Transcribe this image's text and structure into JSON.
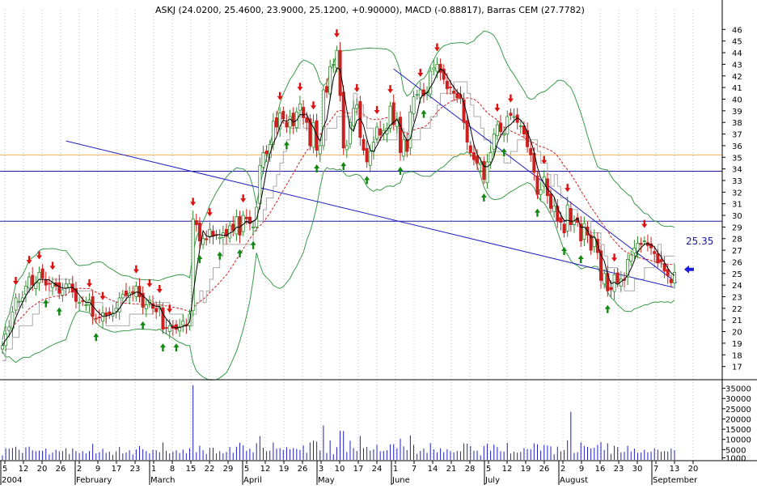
{
  "chart_data": {
    "type": "candlestick",
    "title": "ASKJ (24.0200, 25.4600, 23.9000, 25.1200, +0.90000), MACD (-0.88817), Barras CEM (27.7782)",
    "ylim": [
      16,
      47
    ],
    "yticks": [
      17,
      18,
      19,
      20,
      21,
      22,
      23,
      24,
      25,
      26,
      27,
      28,
      29,
      30,
      31,
      32,
      33,
      34,
      35,
      36,
      37,
      38,
      39,
      40,
      41,
      42,
      43,
      44,
      45,
      46
    ],
    "volume_ticks": [
      {
        "value": 1000,
        "label": "1000"
      },
      {
        "value": 5000,
        "label": "5000"
      },
      {
        "value": 10000,
        "label": "10000"
      },
      {
        "value": 15000,
        "label": "15000"
      },
      {
        "value": 20000,
        "label": "20000"
      },
      {
        "value": 25000,
        "label": "25000"
      },
      {
        "value": 30000,
        "label": "30000"
      },
      {
        "value": 35000,
        "label": "35000"
      }
    ],
    "volume_max": 38000,
    "x_day_labels": [
      "5",
      "12",
      "20",
      "26",
      "2",
      "9",
      "17",
      "23",
      "1",
      "8",
      "15",
      "22",
      "29",
      "5",
      "12",
      "19",
      "26",
      "3",
      "10",
      "17",
      "24",
      "1",
      "7",
      "14",
      "21",
      "28",
      "5",
      "12",
      "19",
      "26",
      "2",
      "9",
      "16",
      "23",
      "30",
      "7",
      "13",
      "20"
    ],
    "x_month_labels": [
      {
        "label": "2004",
        "index": 0
      },
      {
        "label": "February",
        "index": 4
      },
      {
        "label": "March",
        "index": 8
      },
      {
        "label": "April",
        "index": 13
      },
      {
        "label": "May",
        "index": 17
      },
      {
        "label": "June",
        "index": 21
      },
      {
        "label": "July",
        "index": 26
      },
      {
        "label": "August",
        "index": 30
      },
      {
        "label": "September",
        "index": 35
      }
    ],
    "horizontal_lines": [
      {
        "value": 35.2,
        "color": "#f0b060"
      },
      {
        "value": 33.8,
        "color": "#1a1aa0"
      },
      {
        "value": 29.5,
        "color": "#1a1aa0"
      }
    ],
    "trendlines": [
      {
        "from": {
          "i": 19,
          "y": 36.4
        },
        "to": {
          "i": 191,
          "y": 24.6
        },
        "color": "#2020c0"
      },
      {
        "from": {
          "i": 117,
          "y": 42.6
        },
        "to": {
          "i": 192,
          "y": 25.0
        },
        "color": "#2020c0"
      }
    ],
    "annotation": {
      "text": "25.35",
      "value": 25.35
    },
    "close": [
      18.8,
      19.8,
      20.4,
      21.7,
      22.9,
      22.6,
      22.9,
      23.9,
      24.7,
      24.0,
      24.2,
      25.1,
      24.6,
      24.0,
      24.1,
      24.2,
      23.9,
      23.3,
      23.6,
      24.1,
      24.1,
      23.4,
      22.6,
      22.5,
      22.6,
      22.3,
      22.7,
      21.3,
      21.1,
      21.2,
      21.6,
      21.4,
      21.5,
      21.6,
      22.0,
      22.9,
      23.2,
      23.1,
      23.3,
      23.3,
      23.9,
      23.0,
      22.1,
      22.3,
      22.7,
      22.0,
      21.7,
      22.2,
      20.2,
      20.3,
      20.5,
      20.3,
      20.2,
      20.4,
      20.9,
      20.5,
      21.5,
      29.7,
      29.2,
      27.8,
      28.0,
      27.9,
      28.8,
      28.2,
      28.3,
      28.1,
      28.5,
      28.2,
      29.1,
      28.7,
      29.9,
      28.3,
      30.0,
      29.7,
      29.3,
      29.0,
      30.7,
      34.3,
      35.4,
      35.3,
      36.1,
      38.1,
      37.6,
      38.8,
      38.3,
      37.6,
      38.5,
      37.7,
      38.9,
      39.6,
      38.4,
      38.0,
      36.0,
      38.0,
      35.6,
      36.0,
      40.8,
      40.6,
      42.8,
      43.0,
      44.2,
      40.3,
      35.8,
      36.0,
      38.0,
      39.2,
      39.5,
      36.7,
      35.6,
      34.6,
      35.5,
      36.3,
      37.6,
      36.9,
      37.3,
      37.5,
      39.4,
      37.8,
      38.3,
      35.4,
      36.5,
      35.5,
      38.9,
      40.2,
      40.4,
      40.8,
      40.3,
      40.6,
      42.4,
      42.7,
      43.0,
      42.3,
      41.7,
      40.9,
      41.0,
      40.5,
      40.1,
      40.1,
      38.0,
      36.3,
      35.4,
      34.8,
      34.5,
      34.5,
      33.1,
      34.6,
      35.4,
      37.0,
      37.8,
      37.2,
      37.0,
      38.5,
      38.6,
      38.5,
      38.0,
      37.7,
      37.0,
      35.9,
      35.2,
      33.7,
      31.8,
      32.2,
      33.3,
      31.7,
      30.6,
      30.8,
      29.5,
      29.4,
      28.5,
      30.9,
      29.2,
      29.5,
      29.4,
      27.8,
      29.3,
      28.3,
      27.0,
      28.1,
      26.8,
      24.4,
      25.0,
      23.5,
      23.6,
      24.9,
      24.2,
      24.5,
      24.4,
      26.2,
      26.6,
      27.2,
      27.6,
      27.5,
      27.8,
      27.4,
      27.2,
      26.7,
      25.9,
      26.0,
      25.2,
      24.8,
      24.2,
      25.1
    ]
  }
}
